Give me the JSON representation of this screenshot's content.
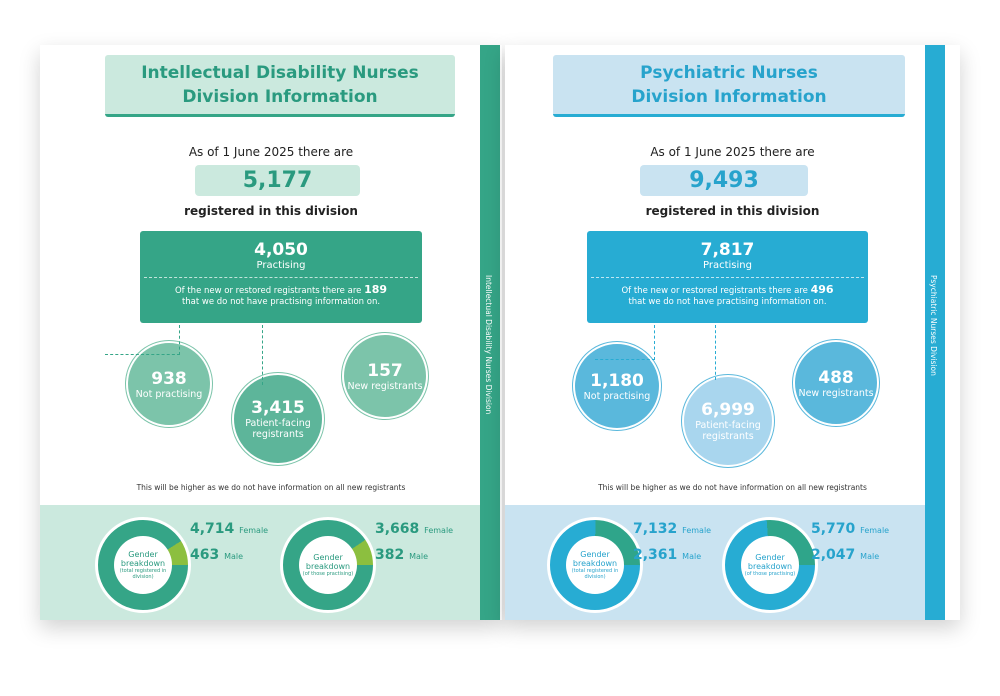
{
  "left": {
    "title_line1": "Intellectual Disability Nurses",
    "title_line2": "Division Information",
    "as_of": "As of 1 June 2025 there are",
    "total": "5,177",
    "registered": "registered in this division",
    "practising": "4,050",
    "practising_label": "Practising",
    "other_prefix": "Of the new or restored registrants there are",
    "other_count": "189",
    "other_suffix": "that we do not have practising information on.",
    "not_practising": "938",
    "not_practising_label": "Not practising",
    "patient_facing": "3,415",
    "patient_facing_label": "Patient-facing registrants",
    "new": "157",
    "new_label": "New registrants",
    "note": "This will be higher as we do not have information on all new registrants",
    "spine": "Intellectual Disability Nurses Division",
    "donuts": [
      {
        "title": "Gender breakdown",
        "sub": "(total registered in division)",
        "female": 4714,
        "female_label": "4,714",
        "male": 463,
        "male_label": "463"
      },
      {
        "title": "Gender breakdown",
        "sub": "(of those practising)",
        "female": 3668,
        "female_label": "3,668",
        "male": 382,
        "male_label": "382"
      }
    ],
    "female_word": "Female",
    "male_word": "Male",
    "colors": {
      "main": "#35a587",
      "light": "#cbe9de",
      "male": "#8cbf3f",
      "circle": "#7cc4aa",
      "text": "#2a9a7f"
    }
  },
  "right": {
    "title_line1": "Psychiatric Nurses",
    "title_line2": "Division Information",
    "as_of": "As of 1 June 2025 there are",
    "total": "9,493",
    "registered": "registered in this division",
    "practising": "7,817",
    "practising_label": "Practising",
    "other_prefix": "Of the new or restored registrants there are",
    "other_count": "496",
    "other_suffix": "that we do not have practising information on.",
    "not_practising": "1,180",
    "not_practising_label": "Not practising",
    "patient_facing": "6,999",
    "patient_facing_label": "Patient-facing registrants",
    "new": "488",
    "new_label": "New registrants",
    "note": "This will be higher as we do not have information on all new registrants",
    "spine": "Psychiatric Nurses Division",
    "donuts": [
      {
        "title": "Gender breakdown",
        "sub": "(total registered in division)",
        "female": 7132,
        "female_label": "7,132",
        "male": 2361,
        "male_label": "2,361"
      },
      {
        "title": "Gender breakdown",
        "sub": "(of those practising)",
        "female": 5770,
        "female_label": "5,770",
        "male": 2047,
        "male_label": "2,047"
      }
    ],
    "female_word": "Female",
    "male_word": "Male",
    "colors": {
      "main": "#27acd3",
      "light": "#c9e3f1",
      "male": "#2fa58a",
      "circle": "#5ab8dc",
      "text": "#27a3cc"
    }
  }
}
